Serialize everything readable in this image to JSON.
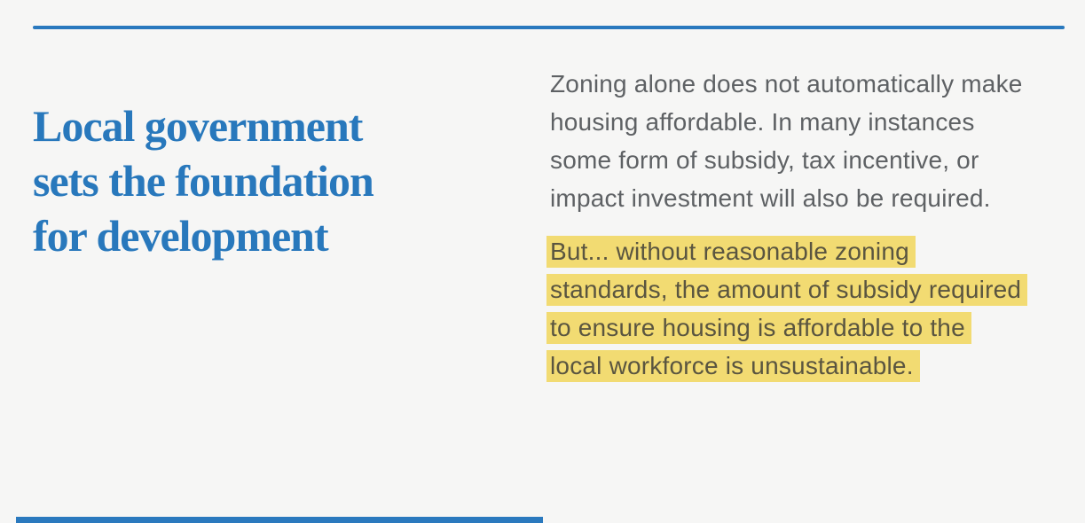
{
  "slide": {
    "background_color": "#F6F6F5",
    "accent_color": "#2A79BE",
    "highlight_color": "#F2DB72",
    "title": {
      "full": "Local government sets the foundation for development",
      "lines": [
        "Local government",
        "sets the foundation",
        "for development"
      ],
      "color": "#2878BC"
    },
    "body": {
      "paragraph1": {
        "full": "Zoning alone does not automatically make housing affordable. In many instances some form of subsidy, tax incentive, or impact investment will also be required.",
        "lines": [
          "Zoning alone does not automatically make",
          "housing affordable. In many instances",
          "some form of subsidy, tax incentive, or",
          "impact investment will also be required."
        ],
        "color": "#5E6164"
      },
      "paragraph2_highlighted": {
        "full": "But... without reasonable zoning standards, the amount of subsidy required to ensure housing is affordable to the local workforce is unsustainable.",
        "lines": [
          "But... without reasonable zoning",
          "standards, the amount of subsidy required",
          "to ensure housing is affordable to the",
          "local workforce is unsustainable."
        ],
        "text_color": "#5A5540",
        "highlight_color": "#F2DB72"
      }
    }
  }
}
